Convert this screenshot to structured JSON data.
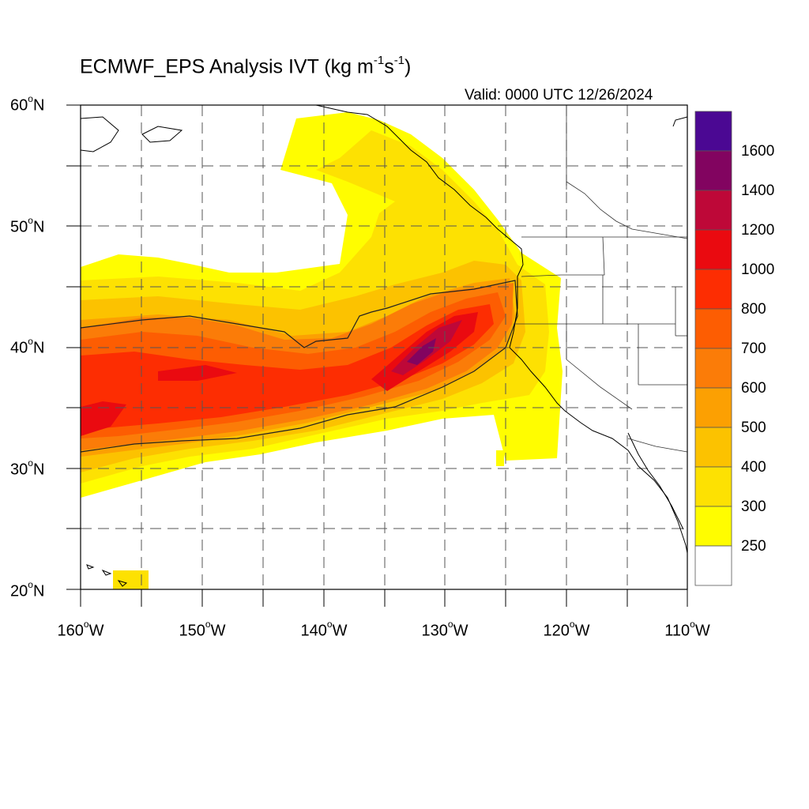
{
  "title": {
    "main": "ECMWF_EPS Analysis IVT (kg m",
    "sup1": "-1",
    "mid": "s",
    "sup2": "-1",
    "end": ")"
  },
  "valid_label": "Valid: 0000 UTC 12/26/2024",
  "lat_labels": [
    {
      "num": "60",
      "deg": "o",
      "hemi": "N"
    },
    {
      "num": "50",
      "deg": "o",
      "hemi": "N"
    },
    {
      "num": "40",
      "deg": "o",
      "hemi": "N"
    },
    {
      "num": "30",
      "deg": "o",
      "hemi": "N"
    },
    {
      "num": "20",
      "deg": "o",
      "hemi": "N"
    }
  ],
  "lon_labels": [
    {
      "num": "160",
      "deg": "o",
      "hemi": "W"
    },
    {
      "num": "150",
      "deg": "o",
      "hemi": "W"
    },
    {
      "num": "140",
      "deg": "o",
      "hemi": "W"
    },
    {
      "num": "130",
      "deg": "o",
      "hemi": "W"
    },
    {
      "num": "120",
      "deg": "o",
      "hemi": "W"
    },
    {
      "num": "110",
      "deg": "o",
      "hemi": "W"
    }
  ],
  "colorbar": {
    "labels": [
      "1600",
      "1400",
      "1200",
      "1000",
      "800",
      "700",
      "600",
      "500",
      "400",
      "300",
      "250"
    ],
    "colors": [
      "#4b0893",
      "#820460",
      "#be0838",
      "#ea0a10",
      "#fd2d02",
      "#fd5d02",
      "#fb7c08",
      "#fca002",
      "#fcc200",
      "#fde102",
      "#fffd00",
      "#ffffff"
    ]
  },
  "map_extent": {
    "lon": [
      -160,
      -110
    ],
    "lat": [
      20,
      60
    ]
  },
  "graticule": {
    "lon_lines": [
      -155,
      -150,
      -145,
      -140,
      -135,
      -130,
      -125,
      -120,
      -115
    ],
    "lat_lines": [
      25,
      30,
      35,
      40,
      45,
      50,
      55
    ]
  }
}
